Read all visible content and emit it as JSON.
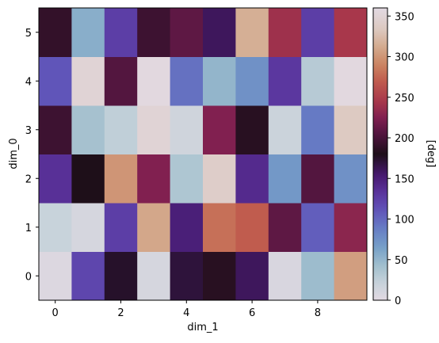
{
  "chart_data": {
    "type": "heatmap",
    "colormap": "twilight_shifted",
    "xlabel": "dim_1",
    "ylabel": "dim_0",
    "x_ticks": [
      0,
      2,
      4,
      6,
      8
    ],
    "y_ticks": [
      0,
      1,
      2,
      3,
      4,
      5
    ],
    "xlim": [
      -0.5,
      9.5
    ],
    "ylim": [
      -0.5,
      5.5
    ],
    "colorbar": {
      "label": "[deg]",
      "range": [
        0,
        360
      ],
      "ticks": [
        0,
        50,
        100,
        150,
        200,
        250,
        300,
        350
      ]
    },
    "rows": [
      {
        "dim_0": 0,
        "values": [
          5,
          120,
          175,
          10,
          170,
          185,
          160,
          8,
          45,
          305
        ]
      },
      {
        "dim_0": 1,
        "values": [
          20,
          10,
          125,
          310,
          150,
          280,
          270,
          210,
          105,
          230
        ]
      },
      {
        "dim_0": 2,
        "values": [
          135,
          180,
          300,
          225,
          35,
          340,
          140,
          70,
          205,
          75
        ]
      },
      {
        "dim_0": 3,
        "values": [
          195,
          40,
          25,
          350,
          15,
          225,
          185,
          18,
          90,
          335
        ]
      },
      {
        "dim_0": 4,
        "values": [
          110,
          350,
          205,
          358,
          95,
          50,
          75,
          130,
          30,
          358
        ]
      },
      {
        "dim_0": 5,
        "values": [
          190,
          55,
          125,
          195,
          210,
          160,
          315,
          240,
          125,
          245
        ]
      }
    ]
  }
}
